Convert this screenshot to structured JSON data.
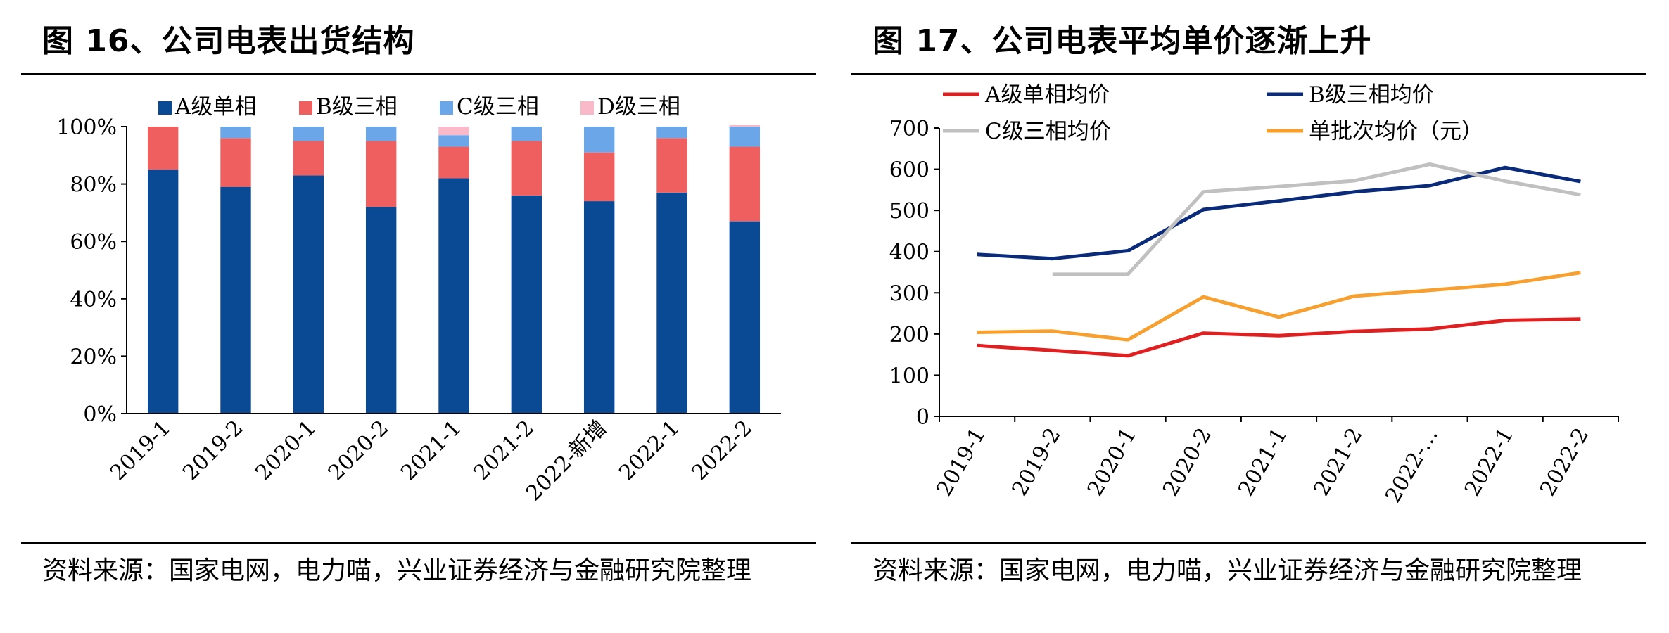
{
  "panels": [
    {
      "title": "图 16、公司电表出货结构",
      "source": "资料来源：国家电网，电力喵，兴业证券经济与金融研究院整理"
    },
    {
      "title": "图 17、公司电表平均单价逐渐上升",
      "source": "资料来源：国家电网，电力喵，兴业证券经济与金融研究院整理"
    }
  ],
  "chart_data": [
    {
      "type": "bar",
      "stacked": true,
      "categories": [
        "2019-1",
        "2019-2",
        "2020-1",
        "2020-2",
        "2021-1",
        "2021-2",
        "2022-新增",
        "2022-1",
        "2022-2"
      ],
      "series": [
        {
          "name": "A级单相",
          "color": "#0a4a94",
          "values": [
            85,
            79,
            83,
            72,
            82,
            76,
            74,
            77,
            67
          ]
        },
        {
          "name": "B级三相",
          "color": "#ef5f5f",
          "values": [
            15,
            17,
            12,
            23,
            11,
            19,
            17,
            19,
            26
          ]
        },
        {
          "name": "C级三相",
          "color": "#6aa6e8",
          "values": [
            0,
            4,
            5,
            5,
            4,
            5,
            9,
            4,
            7
          ]
        },
        {
          "name": "D级三相",
          "color": "#f9b9c8",
          "values": [
            0,
            0,
            0,
            0,
            3,
            0,
            0,
            0,
            0.5
          ]
        }
      ],
      "yticks": [
        "0%",
        "20%",
        "40%",
        "60%",
        "80%",
        "100%"
      ],
      "ylim": [
        0,
        100
      ],
      "legend": "top"
    },
    {
      "type": "line",
      "categories": [
        "2019-1",
        "2019-2",
        "2020-1",
        "2020-2",
        "2021-1",
        "2021-2",
        "2022-…",
        "2022-1",
        "2022-2"
      ],
      "series": [
        {
          "name": "A级单相均价",
          "color": "#e02020",
          "values": [
            172,
            160,
            147,
            202,
            196,
            206,
            212,
            233,
            236
          ]
        },
        {
          "name": "B级三相均价",
          "color": "#0a2a7a",
          "values": [
            393,
            383,
            402,
            502,
            523,
            545,
            560,
            604,
            570
          ]
        },
        {
          "name": "C级三相均价",
          "color": "#c0c0c0",
          "values": [
            null,
            345,
            345,
            545,
            558,
            572,
            612,
            571,
            538
          ]
        },
        {
          "name": "单批次均价（元）",
          "color": "#f7a030",
          "values": [
            204,
            207,
            186,
            290,
            241,
            292,
            306,
            321,
            349
          ]
        }
      ],
      "yticks": [
        "0",
        "100",
        "200",
        "300",
        "400",
        "500",
        "600",
        "700"
      ],
      "ylim": [
        0,
        700
      ],
      "legend": "top"
    }
  ]
}
